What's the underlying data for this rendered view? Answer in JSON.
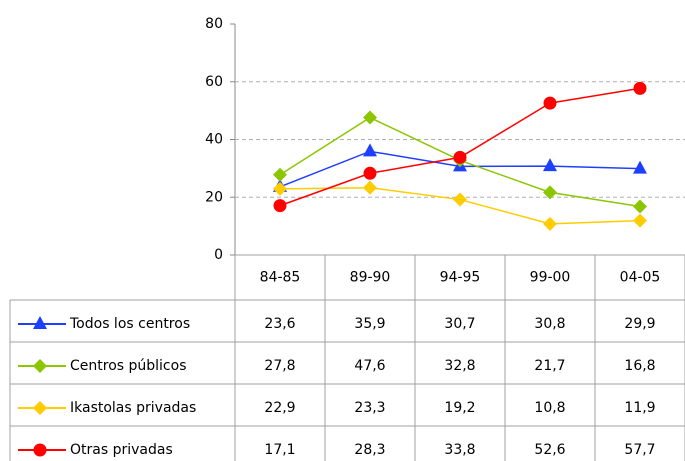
{
  "chart_data": {
    "type": "line",
    "categories": [
      "84-85",
      "89-90",
      "94-95",
      "99-00",
      "04-05"
    ],
    "ylim": [
      0,
      80
    ],
    "yticks": [
      0,
      20,
      40,
      60,
      80
    ],
    "grid": true,
    "series": [
      {
        "name": "Todos los centros",
        "color": "#1f3fff",
        "marker": "triangle",
        "values": [
          23.6,
          35.9,
          30.7,
          30.8,
          29.9
        ],
        "value_labels": [
          "23,6",
          "35,9",
          "30,7",
          "30,8",
          "29,9"
        ]
      },
      {
        "name": "Centros públicos",
        "color": "#8cc600",
        "marker": "diamond",
        "values": [
          27.8,
          47.6,
          32.8,
          21.7,
          16.8
        ],
        "value_labels": [
          "27,8",
          "47,6",
          "32,8",
          "21,7",
          "16,8"
        ]
      },
      {
        "name": "Ikastolas privadas",
        "color": "#ffcc00",
        "marker": "diamond",
        "values": [
          22.9,
          23.3,
          19.2,
          10.8,
          11.9
        ],
        "value_labels": [
          "22,9",
          "23,3",
          "19,2",
          "10,8",
          "11,9"
        ]
      },
      {
        "name": "Otras privadas",
        "color": "#ff0000",
        "marker": "circle",
        "values": [
          17.1,
          28.3,
          33.8,
          52.6,
          57.7
        ],
        "value_labels": [
          "17,1",
          "28,3",
          "33,8",
          "52,6",
          "57,7"
        ]
      }
    ]
  }
}
